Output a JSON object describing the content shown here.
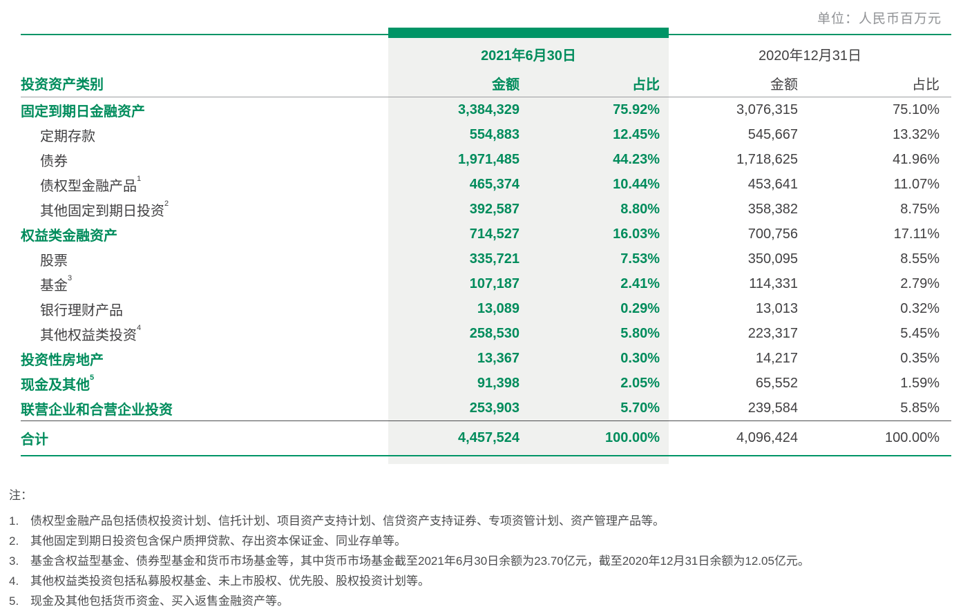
{
  "unit_label": "单位：人民币百万元",
  "colors": {
    "accent_green": "#008C5C",
    "bar_green": "#009466",
    "highlight_column_bg": "#F0F1EF",
    "dark_text": "#414042",
    "muted_gray": "#919396"
  },
  "table": {
    "category_header": "投资资产类别",
    "col_groups": [
      {
        "date": "2021年6月30日",
        "amount_label": "金额",
        "ratio_label": "占比"
      },
      {
        "date": "2020年12月31日",
        "amount_label": "金额",
        "ratio_label": "占比"
      }
    ],
    "rows": [
      {
        "label": "固定到期日金融资产",
        "sup": "",
        "a2021": "3,384,329",
        "p2021": "75.92%",
        "a2020": "3,076,315",
        "p2020": "75.10%"
      },
      {
        "label": "定期存款",
        "sup": "",
        "a2021": "554,883",
        "p2021": "12.45%",
        "a2020": "545,667",
        "p2020": "13.32%"
      },
      {
        "label": "债券",
        "sup": "",
        "a2021": "1,971,485",
        "p2021": "44.23%",
        "a2020": "1,718,625",
        "p2020": "41.96%"
      },
      {
        "label": "债权型金融产品",
        "sup": "1",
        "a2021": "465,374",
        "p2021": "10.44%",
        "a2020": "453,641",
        "p2020": "11.07%"
      },
      {
        "label": "其他固定到期日投资",
        "sup": "2",
        "a2021": "392,587",
        "p2021": "8.80%",
        "a2020": "358,382",
        "p2020": "8.75%"
      },
      {
        "label": "权益类金融资产",
        "sup": "",
        "a2021": "714,527",
        "p2021": "16.03%",
        "a2020": "700,756",
        "p2020": "17.11%"
      },
      {
        "label": "股票",
        "sup": "",
        "a2021": "335,721",
        "p2021": "7.53%",
        "a2020": "350,095",
        "p2020": "8.55%"
      },
      {
        "label": "基金",
        "sup": "3",
        "a2021": "107,187",
        "p2021": "2.41%",
        "a2020": "114,331",
        "p2020": "2.79%"
      },
      {
        "label": "银行理财产品",
        "sup": "",
        "a2021": "13,089",
        "p2021": "0.29%",
        "a2020": "13,013",
        "p2020": "0.32%"
      },
      {
        "label": "其他权益类投资",
        "sup": "4",
        "a2021": "258,530",
        "p2021": "5.80%",
        "a2020": "223,317",
        "p2020": "5.45%"
      },
      {
        "label": "投资性房地产",
        "sup": "",
        "a2021": "13,367",
        "p2021": "0.30%",
        "a2020": "14,217",
        "p2020": "0.35%"
      },
      {
        "label": "现金及其他",
        "sup": "5",
        "a2021": "91,398",
        "p2021": "2.05%",
        "a2020": "65,552",
        "p2020": "1.59%"
      },
      {
        "label": "联营企业和合营企业投资",
        "sup": "",
        "a2021": "253,903",
        "p2021": "5.70%",
        "a2020": "239,584",
        "p2020": "5.85%"
      }
    ],
    "total": {
      "label": "合计",
      "a2021": "4,457,524",
      "p2021": "100.00%",
      "a2020": "4,096,424",
      "p2020": "100.00%"
    }
  },
  "notes": {
    "title": "注：",
    "items": [
      {
        "num": "1.",
        "text": "债权型金融产品包括债权投资计划、信托计划、项目资产支持计划、信贷资产支持证券、专项资管计划、资产管理产品等。"
      },
      {
        "num": "2.",
        "text": "其他固定到期日投资包含保户质押贷款、存出资本保证金、同业存单等。"
      },
      {
        "num": "3.",
        "text": "基金含权益型基金、债券型基金和货币市场基金等，其中货币市场基金截至2021年6月30日余额为23.70亿元，截至2020年12月31日余额为12.05亿元。"
      },
      {
        "num": "4.",
        "text": "其他权益类投资包括私募股权基金、未上市股权、优先股、股权投资计划等。"
      },
      {
        "num": "5.",
        "text": "现金及其他包括货币资金、买入返售金融资产等。"
      }
    ]
  }
}
